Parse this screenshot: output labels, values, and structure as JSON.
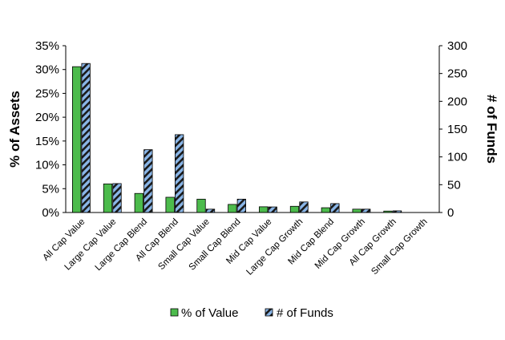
{
  "chart_data": {
    "type": "bar",
    "title": "",
    "categories": [
      "All Cap Value",
      "Large Cap Value",
      "Large Cap Blend",
      "All Cap Blend",
      "Small Cap Value",
      "Small Cap Blend",
      "Mid Cap Value",
      "Large Cap Growth",
      "Mid Cap Blend",
      "Mid Cap Growth",
      "All Cap Growth",
      "Small Cap Growth"
    ],
    "series": [
      {
        "name": "% of Value",
        "axis": "left",
        "color": "#4CBB4C",
        "values": [
          30.6,
          6.0,
          4.0,
          3.2,
          2.8,
          1.7,
          1.2,
          1.3,
          1.0,
          0.7,
          0.3,
          0.0
        ]
      },
      {
        "name": "# of Funds",
        "axis": "right",
        "color": "#8AB6E8",
        "pattern": "diagonal-stripes",
        "values": [
          268,
          52,
          113,
          140,
          6,
          24,
          10,
          19,
          16,
          6,
          3,
          0
        ]
      }
    ],
    "ylabel": "% of Assets",
    "y2label": "# of Funds",
    "ylim": [
      0,
      35
    ],
    "y2lim": [
      0,
      300
    ],
    "yticks": [
      "0%",
      "5%",
      "10%",
      "15%",
      "20%",
      "25%",
      "30%",
      "35%"
    ],
    "y2ticks": [
      "0",
      "50",
      "100",
      "150",
      "200",
      "250",
      "300"
    ],
    "grid": false,
    "legend": "bottom"
  }
}
